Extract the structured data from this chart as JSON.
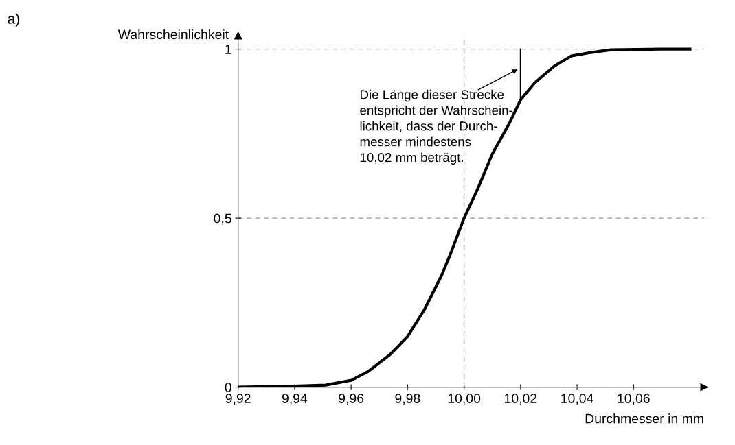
{
  "chart_data": {
    "type": "line",
    "ylabel": "Wahrscheinlichkeit",
    "xlabel": "Durchmesser in mm",
    "x": [
      9.92,
      9.94,
      9.951,
      9.96,
      9.966,
      9.974,
      9.98,
      9.986,
      9.992,
      9.995,
      10.0,
      10.005,
      10.01,
      10.016,
      10.02,
      10.025,
      10.032,
      10.038,
      10.045,
      10.052,
      10.07,
      10.08
    ],
    "series": [
      {
        "color": "#000000",
        "values": [
          0,
          0.003,
          0.006,
          0.02,
          0.046,
          0.098,
          0.15,
          0.23,
          0.33,
          0.39,
          0.5,
          0.59,
          0.69,
          0.78,
          0.85,
          0.9,
          0.95,
          0.98,
          0.99,
          0.998,
          1.0,
          1.0
        ]
      },
      {
        "color": "#000000",
        "x": [
          10.02,
          10.02
        ],
        "values": [
          0.85,
          1.0
        ]
      }
    ],
    "xlim": [
      9.92,
      10.085
    ],
    "ylim": [
      0,
      1.04
    ],
    "xticks": [
      {
        "value": 9.92,
        "label": "9,92"
      },
      {
        "value": 9.94,
        "label": "9,94"
      },
      {
        "value": 9.96,
        "label": "9,96"
      },
      {
        "value": 9.98,
        "label": "9,98"
      },
      {
        "value": 10.0,
        "label": "10,00"
      },
      {
        "value": 10.02,
        "label": "10,02"
      },
      {
        "value": 10.04,
        "label": "10,04"
      },
      {
        "value": 10.06,
        "label": "10,06"
      }
    ],
    "yticks": [
      0,
      {
        "value": 0.5,
        "label": "0,5"
      },
      1
    ],
    "ref_lines": [
      {
        "axis": "y",
        "value": 1,
        "color": "#999999",
        "line_style": "dashed"
      },
      {
        "axis": "y",
        "value": 0.5,
        "color": "#999999",
        "line_style": "dashed"
      },
      {
        "axis": "x",
        "value": 10.0,
        "color": "#999999",
        "line_style": "dashed"
      }
    ],
    "annotations": [
      "a)",
      {
        "text": "Die Länge dieser Strecke\nentspricht der Wahrschein-\nlichkeit, dass der Durch-\nmesser mindestens\n10,02 mm beträgt.",
        "x": 10.019,
        "y": 0.94
      }
    ],
    "grid": false,
    "marker": "none",
    "line_style": "solid"
  }
}
